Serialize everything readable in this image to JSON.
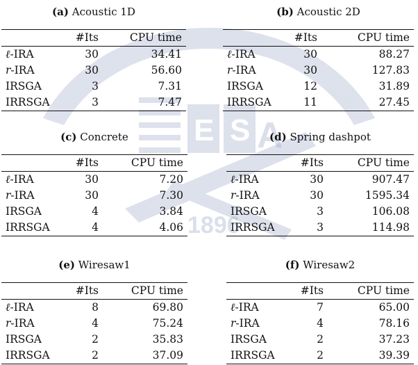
{
  "columns": [
    "#Its",
    "CPU time"
  ],
  "tables": [
    {
      "label": "(a)",
      "title": "Acoustic 1D",
      "rows": [
        [
          "ℓ-IRA",
          "30",
          "34.41"
        ],
        [
          "r-IRA",
          "30",
          "56.60"
        ],
        [
          "IRSGA",
          "3",
          "7.31"
        ],
        [
          "IRRSGA",
          "3",
          "7.47"
        ]
      ]
    },
    {
      "label": "(b)",
      "title": "Acoustic 2D",
      "rows": [
        [
          "ℓ-IRA",
          "30",
          "88.27"
        ],
        [
          "r-IRA",
          "30",
          "127.83"
        ],
        [
          "IRSGA",
          "12",
          "31.89"
        ],
        [
          "IRRSGA",
          "11",
          "27.45"
        ]
      ]
    },
    {
      "label": "(c)",
      "title": "Concrete",
      "rows": [
        [
          "ℓ-IRA",
          "30",
          "7.20"
        ],
        [
          "r-IRA",
          "30",
          "7.30"
        ],
        [
          "IRSGA",
          "4",
          "3.84"
        ],
        [
          "IRRSGA",
          "4",
          "4.06"
        ]
      ]
    },
    {
      "label": "(d)",
      "title": "Spring dashpot",
      "rows": [
        [
          "ℓ-IRA",
          "30",
          "907.47"
        ],
        [
          "r-IRA",
          "30",
          "1595.34"
        ],
        [
          "IRSGA",
          "3",
          "106.08"
        ],
        [
          "IRRSGA",
          "3",
          "114.98"
        ]
      ]
    },
    {
      "label": "(e)",
      "title": "Wiresaw1",
      "rows": [
        [
          "ℓ-IRA",
          "8",
          "69.80"
        ],
        [
          "r-IRA",
          "4",
          "75.24"
        ],
        [
          "IRSGA",
          "2",
          "35.83"
        ],
        [
          "IRRSGA",
          "2",
          "37.09"
        ]
      ]
    },
    {
      "label": "(f)",
      "title": "Wiresaw2",
      "rows": [
        [
          "ℓ-IRA",
          "7",
          "65.00"
        ],
        [
          "r-IRA",
          "4",
          "78.16"
        ],
        [
          "IRSGA",
          "2",
          "37.23"
        ],
        [
          "IRRSGA",
          "2",
          "39.39"
        ]
      ]
    }
  ],
  "watermark": {
    "letters": [
      "E",
      "S",
      "A"
    ],
    "year": "1896"
  }
}
